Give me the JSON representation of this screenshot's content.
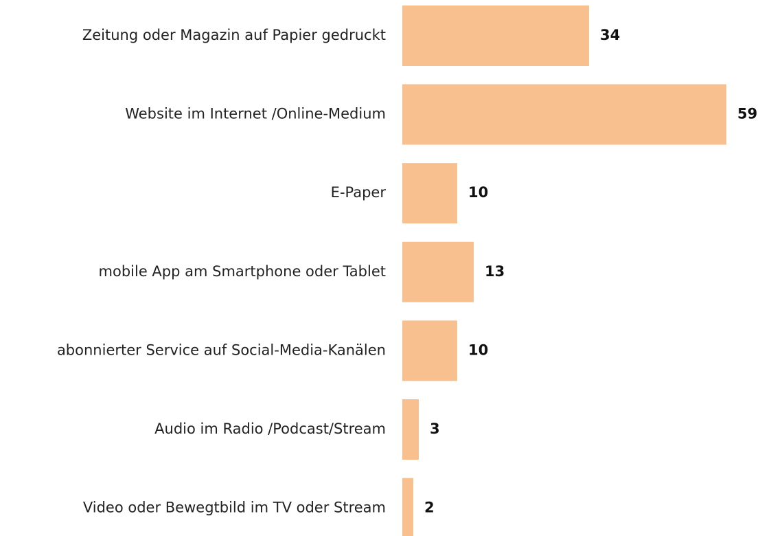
{
  "chart_data": {
    "type": "bar",
    "orientation": "horizontal",
    "categories": [
      "Zeitung oder Magazin auf Papier gedruckt",
      "Website im Internet /Online-Medium",
      "E-Paper",
      "mobile App am Smartphone oder Tablet",
      "abonnierter Service auf Social-Media-Kanälen",
      "Audio im Radio /Podcast/Stream",
      "Video oder Bewegtbild im TV oder Stream"
    ],
    "values": [
      34,
      59,
      10,
      13,
      10,
      3,
      2
    ],
    "color": "#f9c08f"
  }
}
